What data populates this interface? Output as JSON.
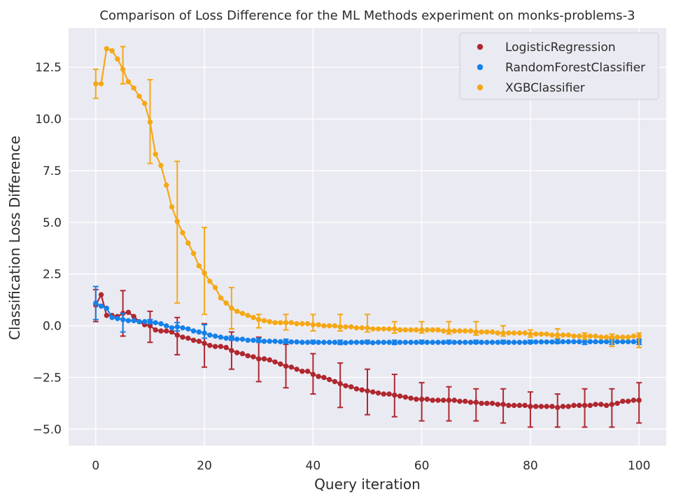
{
  "chart_data": {
    "type": "line",
    "title": "Comparison of Loss Difference for the ML Methods experiment on monks-problems-3",
    "xlabel": "Query iteration",
    "ylabel": "Classification Loss Difference",
    "xlim": [
      -5,
      105
    ],
    "ylim": [
      -5.8,
      14.4
    ],
    "x_ticks": [
      0,
      20,
      40,
      60,
      80,
      100
    ],
    "y_ticks": [
      -5.0,
      -2.5,
      0.0,
      2.5,
      5.0,
      7.5,
      10.0,
      12.5
    ],
    "x_tick_labels": [
      "0",
      "20",
      "40",
      "60",
      "80",
      "100"
    ],
    "y_tick_labels": [
      "−5.0",
      "−2.5",
      "0.0",
      "2.5",
      "5.0",
      "7.5",
      "10.0",
      "12.5"
    ],
    "grid": true,
    "legend_position": "top-right",
    "x": [
      0,
      1,
      2,
      3,
      4,
      5,
      6,
      7,
      8,
      9,
      10,
      11,
      12,
      13,
      14,
      15,
      16,
      17,
      18,
      19,
      20,
      21,
      22,
      23,
      24,
      25,
      26,
      27,
      28,
      29,
      30,
      31,
      32,
      33,
      34,
      35,
      36,
      37,
      38,
      39,
      40,
      41,
      42,
      43,
      44,
      45,
      46,
      47,
      48,
      49,
      50,
      51,
      52,
      53,
      54,
      55,
      56,
      57,
      58,
      59,
      60,
      61,
      62,
      63,
      64,
      65,
      66,
      67,
      68,
      69,
      70,
      71,
      72,
      73,
      74,
      75,
      76,
      77,
      78,
      79,
      80,
      81,
      82,
      83,
      84,
      85,
      86,
      87,
      88,
      89,
      90,
      91,
      92,
      93,
      94,
      95,
      96,
      97,
      98,
      99,
      100
    ],
    "series": [
      {
        "name": "LogisticRegression",
        "color": "#b0272f",
        "values": [
          1.0,
          1.5,
          0.5,
          0.5,
          0.45,
          0.6,
          0.65,
          0.45,
          0.2,
          0.05,
          0.0,
          -0.2,
          -0.25,
          -0.25,
          -0.3,
          -0.45,
          -0.55,
          -0.6,
          -0.7,
          -0.75,
          -0.85,
          -0.95,
          -1.0,
          -1.0,
          -1.05,
          -1.2,
          -1.3,
          -1.35,
          -1.45,
          -1.5,
          -1.6,
          -1.6,
          -1.65,
          -1.75,
          -1.85,
          -1.95,
          -2.0,
          -2.1,
          -2.2,
          -2.2,
          -2.35,
          -2.45,
          -2.5,
          -2.6,
          -2.7,
          -2.8,
          -2.9,
          -2.95,
          -3.05,
          -3.1,
          -3.15,
          -3.2,
          -3.25,
          -3.3,
          -3.3,
          -3.35,
          -3.4,
          -3.45,
          -3.5,
          -3.55,
          -3.55,
          -3.55,
          -3.6,
          -3.6,
          -3.6,
          -3.6,
          -3.6,
          -3.65,
          -3.65,
          -3.7,
          -3.7,
          -3.75,
          -3.75,
          -3.75,
          -3.8,
          -3.8,
          -3.85,
          -3.85,
          -3.85,
          -3.85,
          -3.9,
          -3.9,
          -3.9,
          -3.9,
          -3.9,
          -3.95,
          -3.9,
          -3.9,
          -3.85,
          -3.85,
          -3.85,
          -3.85,
          -3.8,
          -3.8,
          -3.85,
          -3.8,
          -3.75,
          -3.65,
          -3.65,
          -3.6,
          -3.6
        ],
        "error_x": [
          0,
          5,
          10,
          15,
          20,
          25,
          30,
          35,
          40,
          45,
          50,
          55,
          60,
          65,
          70,
          75,
          80,
          85,
          90,
          95,
          100
        ],
        "error_low": [
          0.2,
          -0.5,
          -0.8,
          -1.4,
          -2.0,
          -2.1,
          -2.7,
          -3.0,
          -3.3,
          -3.95,
          -4.3,
          -4.4,
          -4.6,
          -4.6,
          -4.6,
          -4.7,
          -4.9,
          -4.9,
          -4.9,
          -4.9,
          -4.7
        ],
        "error_high": [
          1.75,
          1.7,
          0.7,
          0.4,
          0.1,
          -0.3,
          -0.55,
          -0.9,
          -1.35,
          -1.8,
          -2.1,
          -2.35,
          -2.75,
          -2.95,
          -3.05,
          -3.05,
          -3.2,
          -3.3,
          -3.05,
          -3.05,
          -2.75
        ]
      },
      {
        "name": "RandomForestClassifier",
        "color": "#1581e9",
        "values": [
          1.1,
          0.95,
          0.85,
          0.4,
          0.35,
          0.3,
          0.25,
          0.25,
          0.2,
          0.2,
          0.2,
          0.15,
          0.1,
          0.0,
          -0.1,
          -0.05,
          -0.1,
          -0.15,
          -0.25,
          -0.3,
          -0.35,
          -0.45,
          -0.5,
          -0.55,
          -0.6,
          -0.6,
          -0.65,
          -0.65,
          -0.7,
          -0.7,
          -0.72,
          -0.75,
          -0.75,
          -0.75,
          -0.77,
          -0.77,
          -0.78,
          -0.78,
          -0.8,
          -0.8,
          -0.8,
          -0.8,
          -0.8,
          -0.8,
          -0.8,
          -0.82,
          -0.82,
          -0.8,
          -0.8,
          -0.8,
          -0.8,
          -0.82,
          -0.8,
          -0.8,
          -0.8,
          -0.82,
          -0.8,
          -0.8,
          -0.8,
          -0.8,
          -0.8,
          -0.8,
          -0.8,
          -0.8,
          -0.8,
          -0.8,
          -0.8,
          -0.8,
          -0.8,
          -0.8,
          -0.8,
          -0.8,
          -0.8,
          -0.8,
          -0.8,
          -0.8,
          -0.8,
          -0.8,
          -0.8,
          -0.8,
          -0.8,
          -0.78,
          -0.78,
          -0.78,
          -0.78,
          -0.78,
          -0.77,
          -0.77,
          -0.77,
          -0.77,
          -0.77,
          -0.77,
          -0.77,
          -0.77,
          -0.77,
          -0.77,
          -0.77,
          -0.77,
          -0.77,
          -0.77,
          -0.77
        ],
        "error_x": [
          0,
          5,
          10,
          15,
          20,
          25,
          30,
          35,
          40,
          45,
          50,
          55,
          60,
          65,
          70,
          75,
          80,
          85,
          90,
          95,
          100
        ],
        "error_low": [
          0.3,
          -0.3,
          0.1,
          -0.25,
          -0.6,
          -0.7,
          -0.8,
          -0.85,
          -0.85,
          -0.9,
          -0.85,
          -0.9,
          -0.85,
          -0.85,
          -0.85,
          -0.85,
          -0.85,
          -0.85,
          -0.9,
          -0.9,
          -0.9
        ],
        "error_high": [
          1.9,
          0.6,
          0.3,
          0.15,
          0.05,
          -0.5,
          -0.6,
          -0.65,
          -0.7,
          -0.7,
          -0.7,
          -0.7,
          -0.7,
          -0.7,
          -0.7,
          -0.7,
          -0.7,
          -0.65,
          -0.65,
          -0.65,
          -0.65
        ]
      },
      {
        "name": "XGBClassifier",
        "color": "#f5a816",
        "values": [
          11.7,
          11.7,
          13.4,
          13.3,
          12.9,
          12.4,
          11.8,
          11.5,
          11.1,
          10.75,
          9.85,
          8.3,
          7.75,
          6.8,
          5.75,
          5.05,
          4.5,
          4.0,
          3.5,
          2.9,
          2.55,
          2.15,
          1.85,
          1.35,
          1.1,
          0.85,
          0.7,
          0.6,
          0.5,
          0.4,
          0.3,
          0.25,
          0.2,
          0.15,
          0.15,
          0.15,
          0.15,
          0.1,
          0.1,
          0.1,
          0.05,
          0.05,
          0.0,
          0.0,
          0.0,
          -0.05,
          -0.05,
          -0.05,
          -0.1,
          -0.1,
          -0.1,
          -0.15,
          -0.15,
          -0.15,
          -0.15,
          -0.15,
          -0.2,
          -0.2,
          -0.2,
          -0.2,
          -0.2,
          -0.2,
          -0.2,
          -0.2,
          -0.25,
          -0.25,
          -0.25,
          -0.25,
          -0.25,
          -0.25,
          -0.3,
          -0.3,
          -0.3,
          -0.3,
          -0.35,
          -0.35,
          -0.35,
          -0.35,
          -0.35,
          -0.35,
          -0.4,
          -0.4,
          -0.4,
          -0.4,
          -0.45,
          -0.45,
          -0.45,
          -0.45,
          -0.5,
          -0.5,
          -0.5,
          -0.5,
          -0.5,
          -0.55,
          -0.55,
          -0.55,
          -0.55,
          -0.55,
          -0.55,
          -0.5,
          -0.5
        ],
        "error_x": [
          0,
          5,
          10,
          15,
          20,
          25,
          30,
          35,
          40,
          45,
          50,
          55,
          60,
          65,
          70,
          75,
          80,
          85,
          90,
          95,
          100
        ],
        "error_low": [
          11.0,
          11.7,
          7.85,
          1.1,
          0.55,
          -0.15,
          -0.1,
          -0.2,
          -0.25,
          -0.25,
          -0.3,
          -0.35,
          -0.35,
          -0.4,
          -0.45,
          -0.5,
          -0.55,
          -0.6,
          -0.65,
          -1.0,
          -1.05
        ],
        "error_high": [
          12.4,
          13.5,
          11.9,
          7.95,
          4.75,
          1.85,
          0.55,
          0.55,
          0.55,
          0.55,
          0.55,
          0.2,
          0.2,
          0.2,
          0.2,
          0.0,
          -0.2,
          -0.15,
          -0.35,
          -0.4,
          -0.35
        ]
      }
    ]
  }
}
